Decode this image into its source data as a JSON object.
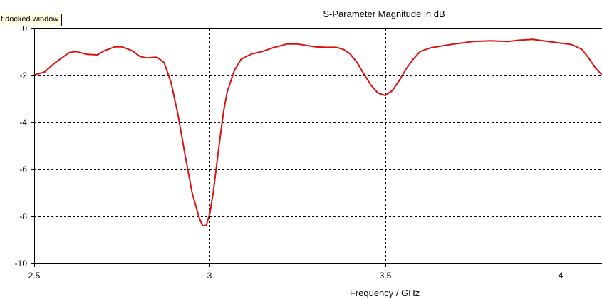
{
  "window": {
    "tooltip_text": "t docked window"
  },
  "chart_data": {
    "type": "line",
    "title": "S-Parameter Magnitude in dB",
    "xlabel": "Frequency / GHz",
    "ylabel": "",
    "xlim": [
      2.5,
      4.12
    ],
    "ylim": [
      -10,
      0
    ],
    "x_ticks": [
      2.5,
      3,
      3.5,
      4
    ],
    "x_tick_labels": [
      "2.5",
      "3",
      "3.5",
      "4"
    ],
    "y_ticks": [
      0,
      -2,
      -4,
      -6,
      -8,
      -10
    ],
    "y_tick_labels": [
      "0",
      "-2",
      "-4",
      "-6",
      "-8",
      "-10"
    ],
    "grid": true,
    "grid_style": "dashed",
    "legend": false,
    "series": [
      {
        "color": "#dd1111",
        "x": [
          2.5,
          2.53,
          2.56,
          2.6,
          2.62,
          2.65,
          2.68,
          2.7,
          2.73,
          2.75,
          2.78,
          2.8,
          2.82,
          2.85,
          2.87,
          2.89,
          2.91,
          2.93,
          2.95,
          2.97,
          2.98,
          2.99,
          3.0,
          3.01,
          3.02,
          3.03,
          3.04,
          3.05,
          3.07,
          3.09,
          3.12,
          3.15,
          3.18,
          3.22,
          3.25,
          3.28,
          3.3,
          3.33,
          3.36,
          3.38,
          3.4,
          3.42,
          3.44,
          3.46,
          3.48,
          3.5,
          3.52,
          3.54,
          3.56,
          3.58,
          3.6,
          3.63,
          3.67,
          3.7,
          3.75,
          3.8,
          3.85,
          3.88,
          3.92,
          3.95,
          4.0,
          4.03,
          4.06,
          4.08,
          4.1,
          4.12
        ],
        "y": [
          -1.98,
          -1.85,
          -1.45,
          -1.02,
          -0.98,
          -1.1,
          -1.12,
          -0.95,
          -0.78,
          -0.78,
          -0.95,
          -1.18,
          -1.25,
          -1.22,
          -1.45,
          -2.3,
          -3.7,
          -5.4,
          -7.0,
          -8.05,
          -8.4,
          -8.38,
          -7.9,
          -7.0,
          -5.8,
          -4.6,
          -3.5,
          -2.7,
          -1.8,
          -1.3,
          -1.08,
          -0.98,
          -0.82,
          -0.66,
          -0.66,
          -0.73,
          -0.78,
          -0.8,
          -0.8,
          -0.88,
          -1.08,
          -1.45,
          -1.95,
          -2.42,
          -2.75,
          -2.85,
          -2.65,
          -2.22,
          -1.72,
          -1.3,
          -0.98,
          -0.82,
          -0.72,
          -0.65,
          -0.55,
          -0.52,
          -0.55,
          -0.5,
          -0.46,
          -0.52,
          -0.62,
          -0.68,
          -0.88,
          -1.25,
          -1.7,
          -2.0
        ]
      }
    ]
  }
}
